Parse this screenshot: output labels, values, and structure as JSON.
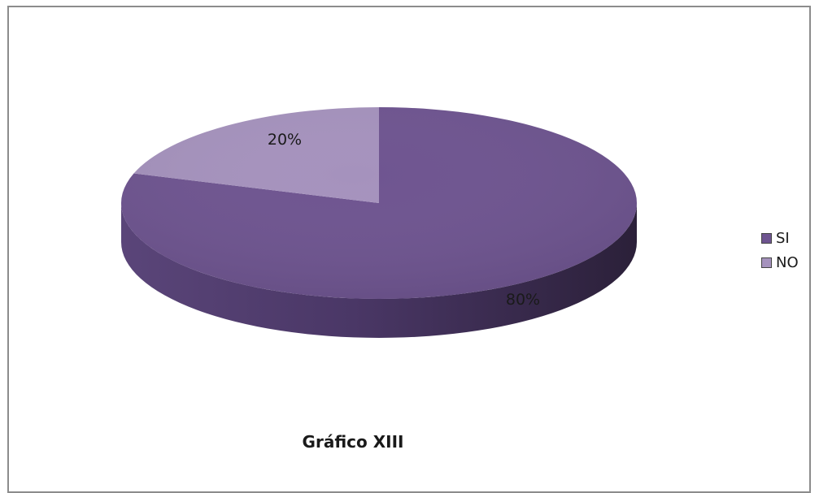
{
  "chart_data": {
    "type": "pie",
    "categories": [
      "SI",
      "NO"
    ],
    "values": [
      80,
      20
    ],
    "labels": [
      "80%",
      "20%"
    ],
    "colors": [
      "#6e5490",
      "#a592bd"
    ],
    "legend_position": "right",
    "caption": "Gráfico XIII"
  }
}
